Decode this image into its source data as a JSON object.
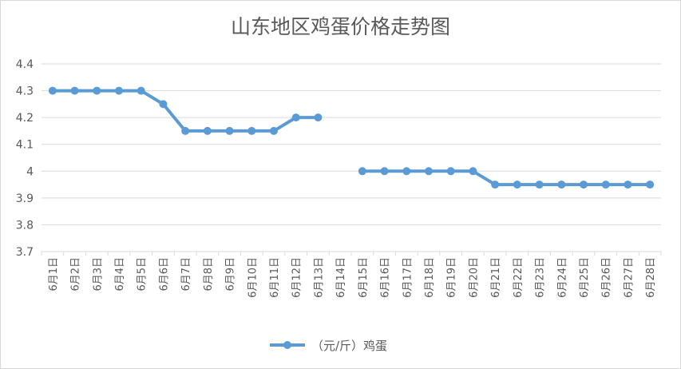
{
  "chart_data": {
    "type": "line",
    "title": "山东地区鸡蛋价格走势图",
    "xlabel": "",
    "ylabel": "",
    "ylim": [
      3.7,
      4.4
    ],
    "yticks": [
      "3.7",
      "3.8",
      "3.9",
      "4",
      "4.1",
      "4.2",
      "4.3",
      "4.4"
    ],
    "grid": true,
    "legend_position": "bottom",
    "categories": [
      "6月1日",
      "6月2日",
      "6月3日",
      "6月4日",
      "6月5日",
      "6月6日",
      "6月7日",
      "6月8日",
      "6月9日",
      "6月10日",
      "6月11日",
      "6月12日",
      "6月13日",
      "6月14日",
      "6月15日",
      "6月16日",
      "6月17日",
      "6月18日",
      "6月19日",
      "6月20日",
      "6月21日",
      "6月22日",
      "6月23日",
      "6月24日",
      "6月25日",
      "6月26日",
      "6月27日",
      "6月28日"
    ],
    "series": [
      {
        "name": "（元/斤）鸡蛋",
        "color": "#5b9bd5",
        "values": [
          4.3,
          4.3,
          4.3,
          4.3,
          4.3,
          4.25,
          4.15,
          4.15,
          4.15,
          4.15,
          4.15,
          4.2,
          4.2,
          null,
          4.0,
          4.0,
          4.0,
          4.0,
          4.0,
          4.0,
          3.95,
          3.95,
          3.95,
          3.95,
          3.95,
          3.95,
          3.95,
          3.95
        ]
      }
    ]
  }
}
